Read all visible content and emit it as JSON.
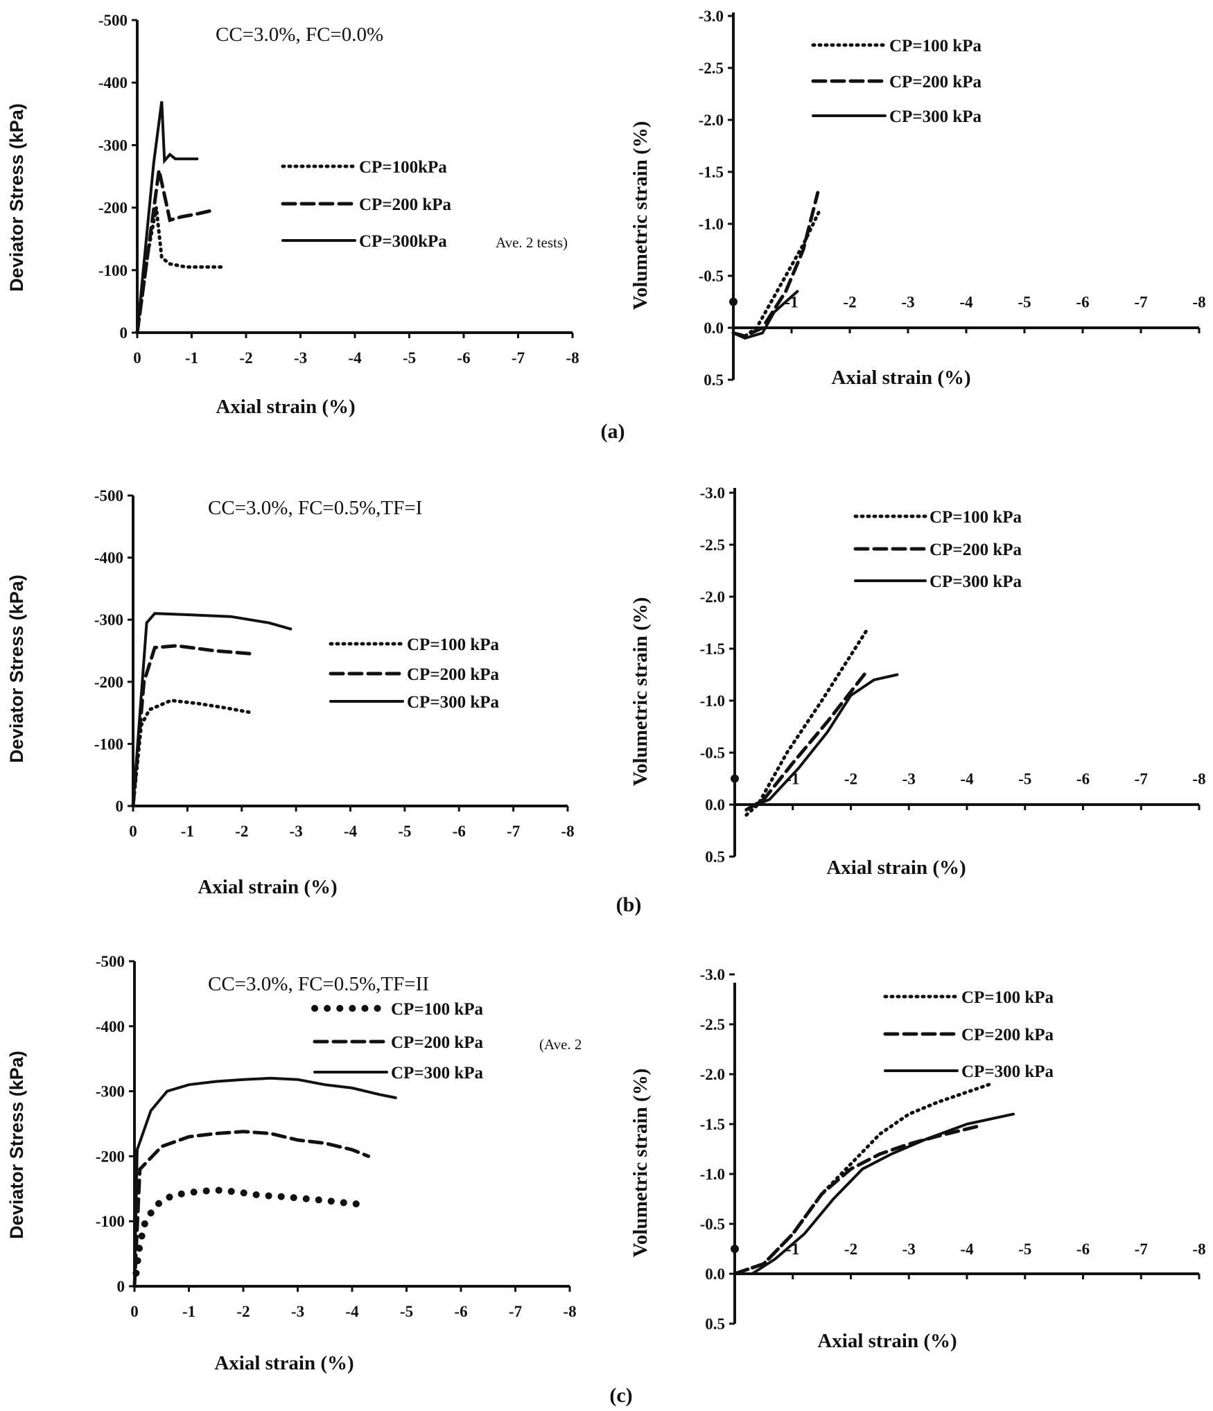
{
  "chart_data": [
    {
      "panel": "(a)",
      "type": "line",
      "title": "CC=3.0%, FC=0.0%",
      "xlabel": "Axial strain (%)",
      "ylabel": "Deviator Stress (kPa)",
      "xlim": [
        0,
        -8
      ],
      "ylim": [
        0,
        -500
      ],
      "xticks": [
        "0",
        "-1",
        "-2",
        "-3",
        "-4",
        "-5",
        "-6",
        "-7",
        "-8"
      ],
      "yticks": [
        "-500",
        "-400",
        "-300",
        "-200",
        "-100",
        "0"
      ],
      "annotation": "Ave. 2 tests)",
      "series": [
        {
          "name": "CP=100kPa",
          "style": "dotted",
          "points": [
            [
              0,
              0
            ],
            [
              -0.2,
              -130
            ],
            [
              -0.35,
              -200
            ],
            [
              -0.45,
              -120
            ],
            [
              -0.6,
              -110
            ],
            [
              -0.9,
              -105
            ],
            [
              -1.3,
              -105
            ],
            [
              -1.6,
              -105
            ]
          ]
        },
        {
          "name": "CP=200 kPa",
          "style": "dashed",
          "points": [
            [
              0,
              0
            ],
            [
              -0.4,
              -260
            ],
            [
              -0.5,
              -220
            ],
            [
              -0.6,
              -180
            ],
            [
              -0.8,
              -185
            ],
            [
              -1.1,
              -190
            ],
            [
              -1.35,
              -195
            ]
          ]
        },
        {
          "name": "CP=300kPa",
          "style": "solid",
          "points": [
            [
              0,
              0
            ],
            [
              -0.3,
              -270
            ],
            [
              -0.45,
              -370
            ],
            [
              -0.5,
              -275
            ],
            [
              -0.6,
              -285
            ],
            [
              -0.7,
              -278
            ],
            [
              -1.1,
              -278
            ]
          ]
        }
      ]
    },
    {
      "panel": "(a)",
      "type": "line",
      "title": "",
      "xlabel": "Axial strain (%)",
      "ylabel": "Volumetric strain (%)",
      "xlim": [
        0,
        -8
      ],
      "ylim": [
        0.5,
        -3.0
      ],
      "xticks": [
        "-1",
        "-2",
        "-3",
        "-4",
        "-5",
        "-6",
        "-7",
        "-8"
      ],
      "yticks": [
        "-3.0",
        "-2.5",
        "-2.0",
        "-1.5",
        "-1.0",
        "-0.5",
        "0.0",
        "0.5"
      ],
      "series": [
        {
          "name": "CP=100 kPa",
          "style": "dotted",
          "points": [
            [
              0,
              0.05
            ],
            [
              -0.2,
              0.08
            ],
            [
              -0.4,
              0
            ],
            [
              -0.8,
              -0.4
            ],
            [
              -1.2,
              -0.8
            ],
            [
              -1.5,
              -1.15
            ]
          ]
        },
        {
          "name": "CP=200 kPa",
          "style": "dashed",
          "points": [
            [
              0,
              0.05
            ],
            [
              -0.2,
              0.08
            ],
            [
              -0.5,
              0
            ],
            [
              -0.9,
              -0.35
            ],
            [
              -1.2,
              -0.75
            ],
            [
              -1.45,
              -1.3
            ]
          ]
        },
        {
          "name": "CP=300 kPa",
          "style": "solid",
          "points": [
            [
              0,
              0.05
            ],
            [
              -0.2,
              0.1
            ],
            [
              -0.5,
              0.05
            ],
            [
              -0.7,
              -0.15
            ],
            [
              -1.1,
              -0.35
            ]
          ]
        }
      ]
    },
    {
      "panel": "(b)",
      "type": "line",
      "title": "CC=3.0%, FC=0.5%,TF=I",
      "xlabel": "Axial strain (%)",
      "ylabel": "Deviator Stress (kPa)",
      "xlim": [
        0,
        -8
      ],
      "ylim": [
        0,
        -500
      ],
      "xticks": [
        "0",
        "-1",
        "-2",
        "-3",
        "-4",
        "-5",
        "-6",
        "-7",
        "-8"
      ],
      "yticks": [
        "-500",
        "-400",
        "-300",
        "-200",
        "-100",
        "0"
      ],
      "series": [
        {
          "name": "CP=100 kPa",
          "style": "dotted",
          "points": [
            [
              0,
              0
            ],
            [
              -0.15,
              -130
            ],
            [
              -0.3,
              -155
            ],
            [
              -0.7,
              -170
            ],
            [
              -1.2,
              -165
            ],
            [
              -1.7,
              -158
            ],
            [
              -2.2,
              -150
            ]
          ]
        },
        {
          "name": "CP=200 kPa",
          "style": "dashed",
          "points": [
            [
              0,
              0
            ],
            [
              -0.2,
              -200
            ],
            [
              -0.4,
              -255
            ],
            [
              -0.8,
              -258
            ],
            [
              -1.5,
              -250
            ],
            [
              -2.2,
              -245
            ]
          ]
        },
        {
          "name": "CP=300 kPa",
          "style": "solid",
          "points": [
            [
              0,
              0
            ],
            [
              -0.25,
              -295
            ],
            [
              -0.4,
              -310
            ],
            [
              -1.0,
              -308
            ],
            [
              -1.8,
              -305
            ],
            [
              -2.5,
              -295
            ],
            [
              -2.9,
              -285
            ]
          ]
        }
      ]
    },
    {
      "panel": "(b)",
      "type": "line",
      "title": "",
      "xlabel": "Axial strain (%)",
      "ylabel": "Volumetric strain (%)",
      "xlim": [
        0,
        -8
      ],
      "ylim": [
        0.5,
        -3.0
      ],
      "xticks": [
        "-1",
        "-2",
        "-3",
        "-4",
        "-5",
        "-6",
        "-7",
        "-8"
      ],
      "yticks": [
        "-3.0",
        "-2.5",
        "-2.0",
        "-1.5",
        "-1.0",
        "-0.5",
        "0.0",
        "0.5"
      ],
      "series": [
        {
          "name": "CP=100 kPa",
          "style": "dotted",
          "points": [
            [
              -0.2,
              0.1
            ],
            [
              -0.4,
              0
            ],
            [
              -0.9,
              -0.5
            ],
            [
              -1.5,
              -1.0
            ],
            [
              -2.3,
              -1.7
            ]
          ]
        },
        {
          "name": "CP=200 kPa",
          "style": "dashed",
          "points": [
            [
              -0.2,
              0.05
            ],
            [
              -0.5,
              -0.05
            ],
            [
              -1.0,
              -0.4
            ],
            [
              -1.6,
              -0.8
            ],
            [
              -2.3,
              -1.3
            ]
          ]
        },
        {
          "name": "CP=300 kPa",
          "style": "solid",
          "points": [
            [
              -0.3,
              0.02
            ],
            [
              -0.6,
              -0.05
            ],
            [
              -1.1,
              -0.35
            ],
            [
              -1.6,
              -0.7
            ],
            [
              -2.0,
              -1.05
            ],
            [
              -2.4,
              -1.2
            ],
            [
              -2.8,
              -1.25
            ]
          ]
        }
      ]
    },
    {
      "panel": "(c)",
      "type": "line",
      "title": "CC=3.0%, FC=0.5%,TF=II",
      "xlabel": "Axial strain (%)",
      "ylabel": "Deviator Stress (kPa)",
      "xlim": [
        0,
        -8
      ],
      "ylim": [
        0,
        -500
      ],
      "xticks": [
        "0",
        "-1",
        "-2",
        "-3",
        "-4",
        "-5",
        "-6",
        "-7",
        "-8"
      ],
      "yticks": [
        "-500",
        "-400",
        "-300",
        "-200",
        "-100",
        "0"
      ],
      "annotation": "(Ave. 2",
      "series": [
        {
          "name": "CP=100 kPa",
          "style": "dots",
          "points": [
            [
              -0.03,
              -20
            ],
            [
              -0.06,
              -40
            ],
            [
              -0.1,
              -65
            ],
            [
              -0.2,
              -100
            ],
            [
              -0.4,
              -125
            ],
            [
              -0.7,
              -140
            ],
            [
              -1.1,
              -145
            ],
            [
              -1.5,
              -148
            ],
            [
              -1.9,
              -145
            ],
            [
              -2.3,
              -140
            ],
            [
              -2.7,
              -138
            ],
            [
              -3.1,
              -135
            ],
            [
              -3.5,
              -132
            ],
            [
              -3.9,
              -128
            ],
            [
              -4.3,
              -125
            ]
          ]
        },
        {
          "name": "CP=200 kPa",
          "style": "dashed",
          "points": [
            [
              0,
              0
            ],
            [
              -0.1,
              -180
            ],
            [
              -0.5,
              -215
            ],
            [
              -1.0,
              -230
            ],
            [
              -1.5,
              -235
            ],
            [
              -2.0,
              -238
            ],
            [
              -2.5,
              -235
            ],
            [
              -3.0,
              -225
            ],
            [
              -3.5,
              -220
            ],
            [
              -4.0,
              -210
            ],
            [
              -4.3,
              -200
            ]
          ]
        },
        {
          "name": "CP=300 kPa",
          "style": "solid",
          "points": [
            [
              0,
              0
            ],
            [
              -0.05,
              -210
            ],
            [
              -0.3,
              -270
            ],
            [
              -0.6,
              -300
            ],
            [
              -1.0,
              -310
            ],
            [
              -1.5,
              -315
            ],
            [
              -2.0,
              -318
            ],
            [
              -2.5,
              -320
            ],
            [
              -3.0,
              -318
            ],
            [
              -3.5,
              -310
            ],
            [
              -4.0,
              -305
            ],
            [
              -4.5,
              -295
            ],
            [
              -4.8,
              -290
            ]
          ]
        }
      ]
    },
    {
      "panel": "(c)",
      "type": "line",
      "title": "",
      "xlabel": "Axial strain (%)",
      "ylabel": "Volumetric strain (%)",
      "xlim": [
        0,
        -8
      ],
      "ylim": [
        0.5,
        -3.0
      ],
      "xticks": [
        "-1",
        "-2",
        "-3",
        "-4",
        "-5",
        "-6",
        "-7",
        "-8"
      ],
      "yticks": [
        "-3.0",
        "-2.5",
        "-2.0",
        "-1.5",
        "-1.0",
        "-0.5",
        "0.0",
        "0.5"
      ],
      "series": [
        {
          "name": "CP=100 kPa",
          "style": "dotted",
          "points": [
            [
              0,
              0
            ],
            [
              -0.5,
              -0.1
            ],
            [
              -1.0,
              -0.4
            ],
            [
              -1.5,
              -0.8
            ],
            [
              -2.0,
              -1.1
            ],
            [
              -2.5,
              -1.4
            ],
            [
              -3.0,
              -1.6
            ],
            [
              -3.5,
              -1.72
            ],
            [
              -4.0,
              -1.82
            ],
            [
              -4.4,
              -1.9
            ]
          ]
        },
        {
          "name": "CP=200 kPa",
          "style": "dashed",
          "points": [
            [
              0,
              0
            ],
            [
              -0.5,
              -0.1
            ],
            [
              -1.0,
              -0.4
            ],
            [
              -1.5,
              -0.8
            ],
            [
              -2.0,
              -1.05
            ],
            [
              -2.5,
              -1.2
            ],
            [
              -3.0,
              -1.3
            ],
            [
              -3.5,
              -1.38
            ],
            [
              -4.2,
              -1.48
            ]
          ]
        },
        {
          "name": "CP=300 kPa",
          "style": "solid",
          "points": [
            [
              0,
              0
            ],
            [
              -0.3,
              0
            ],
            [
              -0.7,
              -0.15
            ],
            [
              -1.2,
              -0.4
            ],
            [
              -1.7,
              -0.75
            ],
            [
              -2.2,
              -1.05
            ],
            [
              -2.7,
              -1.2
            ],
            [
              -3.3,
              -1.35
            ],
            [
              -4.0,
              -1.5
            ],
            [
              -4.8,
              -1.6
            ]
          ]
        }
      ]
    }
  ]
}
